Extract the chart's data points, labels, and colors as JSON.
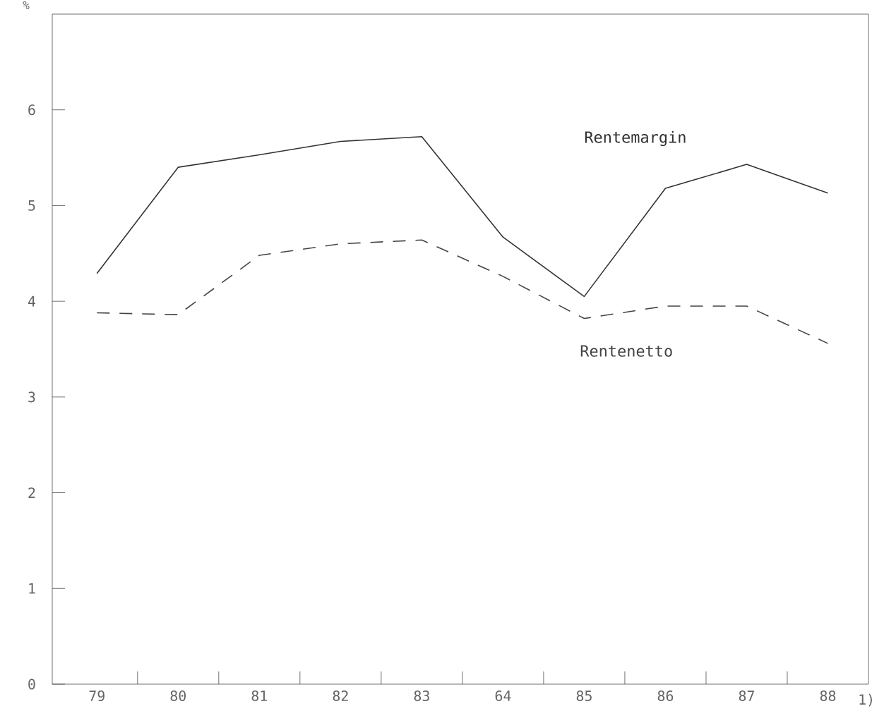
{
  "chart_data": {
    "type": "line",
    "ylabel": "%",
    "categories": [
      "79",
      "80",
      "81",
      "82",
      "83",
      "64",
      "85",
      "86",
      "87",
      "88"
    ],
    "series": [
      {
        "name": "Rentemargin",
        "color": "#333333",
        "line_style": "solid",
        "values": [
          4.29,
          5.4,
          5.53,
          5.67,
          5.72,
          4.67,
          4.05,
          5.18,
          5.43,
          5.13
        ]
      },
      {
        "name": "Rentenetto",
        "color": "#444444",
        "line_style": "dashed",
        "values": [
          3.88,
          3.86,
          4.48,
          4.6,
          4.64,
          4.26,
          3.82,
          3.95,
          3.95,
          3.56
        ]
      }
    ],
    "ylim": [
      0,
      7
    ],
    "yticks": [
      0,
      1,
      2,
      3,
      4,
      5,
      6
    ],
    "grid": false,
    "legend": false,
    "marker": "none",
    "annotations": [
      "1)"
    ]
  }
}
